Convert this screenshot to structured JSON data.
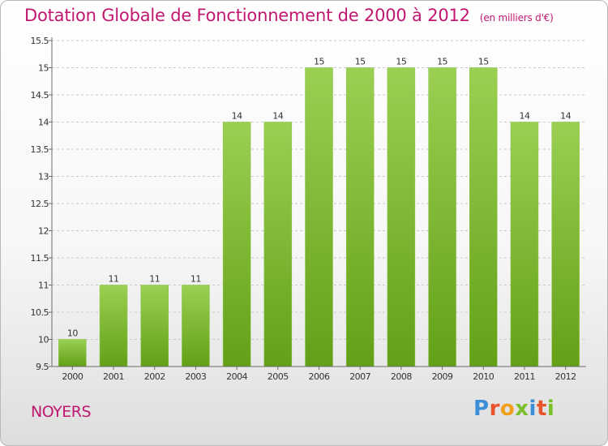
{
  "header": {
    "title": "Dotation Globale de Fonctionnement de 2000 à 2012",
    "unit": "(en milliers d'€)"
  },
  "footer": {
    "place": "NOYERS",
    "brand": "Proxiti"
  },
  "colors": {
    "title": "#c0176f",
    "bar_light": "#9bd052",
    "bar_dark": "#63a017",
    "axis": "#6b6b6b",
    "grid": "#c9c9c9",
    "label": "#333333",
    "brand_letters": [
      "#3c8fd6",
      "#e8532c",
      "#f2a01b",
      "#7bbf2a",
      "#3c8fd6",
      "#e8532c",
      "#7bbf2a"
    ]
  },
  "chart_data": {
    "type": "bar",
    "title": "Dotation Globale de Fonctionnement de 2000 à 2012",
    "subtitle": "(en milliers d'€)",
    "xlabel": "",
    "ylabel": "",
    "categories": [
      "2000",
      "2001",
      "2002",
      "2003",
      "2004",
      "2005",
      "2006",
      "2007",
      "2008",
      "2009",
      "2010",
      "2011",
      "2012"
    ],
    "values": [
      10,
      11,
      11,
      11,
      14,
      14,
      15,
      15,
      15,
      15,
      15,
      14,
      14
    ],
    "data_labels": [
      "10",
      "11",
      "11",
      "11",
      "14",
      "14",
      "15",
      "15",
      "15",
      "15",
      "15",
      "14",
      "14"
    ],
    "ylim": [
      9.5,
      15.5
    ],
    "yticks": [
      9.5,
      10,
      10.5,
      11,
      11.5,
      12,
      12.5,
      13,
      13.5,
      14,
      14.5,
      15,
      15.5
    ],
    "ytick_labels": [
      "9.5",
      "10",
      "10.5",
      "11",
      "11.5",
      "12",
      "12.5",
      "13",
      "13.5",
      "14",
      "14.5",
      "15",
      "15.5"
    ],
    "grid": true,
    "legend": "none"
  }
}
